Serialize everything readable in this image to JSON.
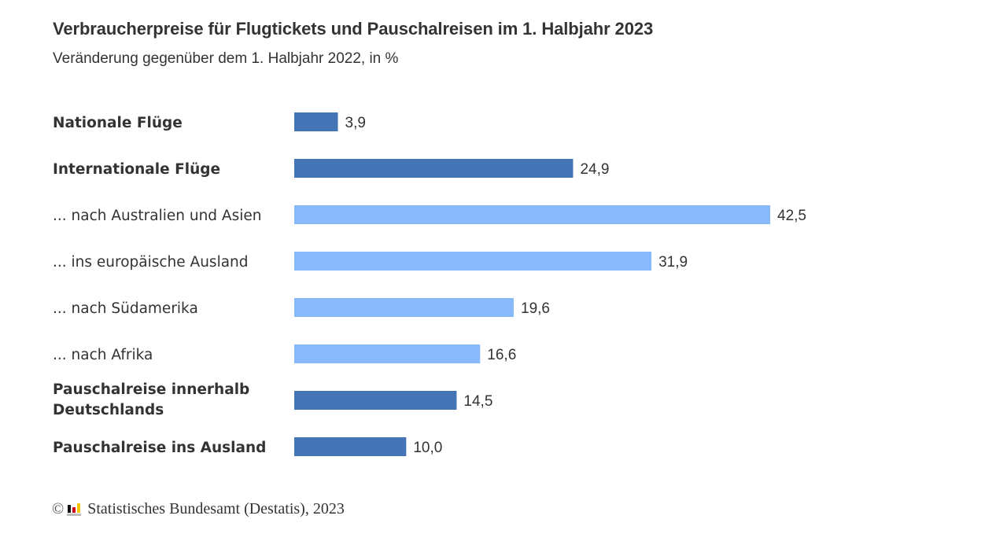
{
  "header": {
    "title": "Verbraucherpreise für Flugtickets und Pauschalreisen im 1. Halbjahr 2023",
    "subtitle": "Veränderung gegenüber dem 1. Halbjahr 2022, in %"
  },
  "footer": {
    "copyright_symbol": "©",
    "logo_icon": "destatis-logo-icon",
    "source": "Statistisches Bundesamt (Destatis), 2023"
  },
  "colors": {
    "main": "#4375b7",
    "sub": "#87b9fc"
  },
  "chart_data": {
    "type": "bar",
    "orientation": "horizontal",
    "title": "Verbraucherpreise für Flugtickets und Pauschalreisen im 1. Halbjahr 2023",
    "subtitle": "Veränderung gegenüber dem 1. Halbjahr 2022, in %",
    "xlabel": "",
    "ylabel": "",
    "xlim": [
      0,
      42.5
    ],
    "grid": false,
    "legend": "none",
    "categories": [
      "Nationale Flüge",
      "Internationale Flüge",
      "... nach Australien und Asien",
      "... ins europäische Ausland",
      "... nach Südamerika",
      "... nach Afrika",
      "Pauschalreise innerhalb Deutschlands",
      "Pauschalreise ins Ausland"
    ],
    "label_lines": [
      [
        "Nationale Flüge"
      ],
      [
        "Internationale Flüge"
      ],
      [
        "... nach Australien und Asien"
      ],
      [
        "... ins europäische Ausland"
      ],
      [
        "... nach Südamerika"
      ],
      [
        "... nach Afrika"
      ],
      [
        "Pauschalreise innerhalb",
        "Deutschlands"
      ],
      [
        "Pauschalreise ins Ausland"
      ]
    ],
    "values": [
      3.9,
      24.9,
      42.5,
      31.9,
      19.6,
      16.6,
      14.5,
      10.0
    ],
    "value_labels": [
      "3,9",
      "24,9",
      "42,5",
      "31,9",
      "19,6",
      "16,6",
      "14,5",
      "10,0"
    ],
    "bold": [
      true,
      true,
      false,
      false,
      false,
      false,
      true,
      true
    ],
    "group": [
      "main",
      "main",
      "sub",
      "sub",
      "sub",
      "sub",
      "main",
      "main"
    ]
  }
}
